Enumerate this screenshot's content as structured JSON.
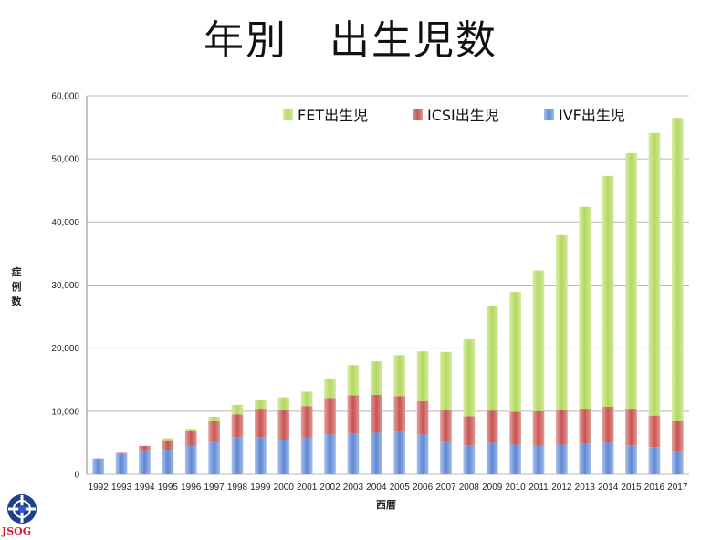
{
  "title": "年別　出生児数",
  "logo_text": "JSOG",
  "colors": {
    "fet": "#b5d96a",
    "icsi": "#c95a58",
    "ivf": "#6c93d6"
  },
  "chart_data": {
    "type": "bar",
    "stacked": true,
    "title": "年別　出生児数",
    "xlabel": "西暦",
    "ylabel": "症例数",
    "ylim": [
      0,
      60000
    ],
    "yticks": [
      "0",
      "10,000",
      "20,000",
      "30,000",
      "40,000",
      "50,000",
      "60,000"
    ],
    "grid": true,
    "legend_position": "top-right",
    "categories": [
      "1992",
      "1993",
      "1994",
      "1995",
      "1996",
      "1997",
      "1998",
      "1999",
      "2000",
      "2001",
      "2002",
      "2003",
      "2004",
      "2005",
      "2006",
      "2007",
      "2008",
      "2009",
      "2010",
      "2011",
      "2012",
      "2013",
      "2014",
      "2015",
      "2016",
      "2017"
    ],
    "series": [
      {
        "name": "IVF出生児",
        "values": [
          2500,
          3300,
          3800,
          3900,
          4500,
          5100,
          5900,
          5900,
          5500,
          5800,
          6300,
          6500,
          6600,
          6700,
          6300,
          5100,
          4600,
          5000,
          4700,
          4500,
          4700,
          4800,
          5000,
          4600,
          4300,
          3700
        ]
      },
      {
        "name": "ICSI出生児",
        "values": [
          0,
          100,
          700,
          1500,
          2400,
          3400,
          3600,
          4500,
          4800,
          5000,
          5800,
          6000,
          6000,
          5700,
          5300,
          5100,
          4600,
          5100,
          5200,
          5500,
          5500,
          5600,
          5700,
          5800,
          5000,
          4800
        ]
      },
      {
        "name": "FET出生児",
        "values": [
          0,
          0,
          0,
          300,
          300,
          600,
          1500,
          1400,
          1900,
          2300,
          3000,
          4800,
          5300,
          6500,
          7900,
          9200,
          12200,
          16500,
          19000,
          22300,
          27700,
          32000,
          36600,
          40500,
          44800,
          48000
        ]
      }
    ]
  }
}
